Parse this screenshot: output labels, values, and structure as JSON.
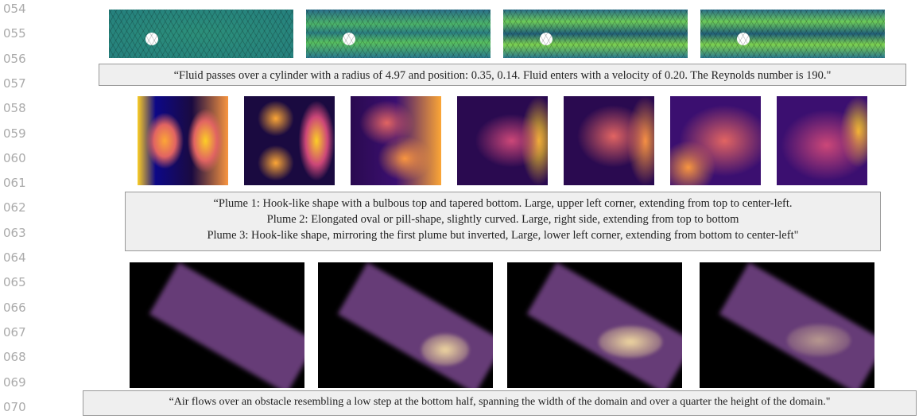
{
  "line_numbers": [
    "054",
    "055",
    "056",
    "057",
    "058",
    "059",
    "060",
    "061",
    "062",
    "063",
    "064",
    "065",
    "066",
    "067",
    "068",
    "069",
    "070"
  ],
  "captions": [
    {
      "lines": [
        "“Fluid passes over a cylinder with a radius of 4.97 and position: 0.35, 0.14. Fluid enters with a velocity of 0.20. The Reynolds number is 190.\""
      ]
    },
    {
      "lines": [
        "“Plume 1: Hook-like shape with a bulbous top and tapered bottom. Large, upper left corner, extending from top to center-left.",
        "Plume 2: Elongated oval or pill-shape, slightly curved. Large, right side, extending from top to bottom",
        "Plume 3: Hook-like shape, mirroring the first plume but inverted, Large, lower left corner, extending from bottom to center-left\""
      ]
    },
    {
      "lines": [
        "“Air flows over an obstacle resembling a low step at the bottom half, spanning the width of the domain and over a quarter the height of the domain.\""
      ]
    }
  ]
}
